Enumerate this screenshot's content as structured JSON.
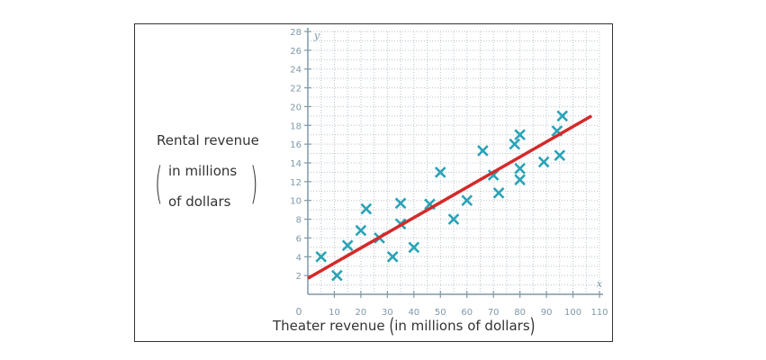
{
  "chart_data": {
    "type": "scatter",
    "title": "",
    "xlabel": {
      "main": "Theater revenue",
      "paren": "in millions of dollars"
    },
    "ylabel": {
      "main": "Rental revenue",
      "paren_line1": "in millions",
      "paren_line2": "of dollars"
    },
    "x_axis_letter": "x",
    "y_axis_letter": "y",
    "origin_label": "0",
    "xlim": [
      0,
      110
    ],
    "ylim": [
      0,
      28
    ],
    "x_ticks": [
      10,
      20,
      30,
      40,
      50,
      60,
      70,
      80,
      90,
      100,
      110
    ],
    "y_ticks": [
      2,
      4,
      6,
      8,
      10,
      12,
      14,
      16,
      18,
      20,
      22,
      24,
      26,
      28
    ],
    "grid": true,
    "marker": "x",
    "marker_color": "#2aa3b7",
    "line_color": "#d42a2a",
    "axis_color": "#7f99a8",
    "grid_color": "#b7c4cc",
    "points": [
      {
        "x": 5,
        "y": 4
      },
      {
        "x": 11,
        "y": 2
      },
      {
        "x": 15,
        "y": 5.2
      },
      {
        "x": 20,
        "y": 6.8
      },
      {
        "x": 22,
        "y": 9.1
      },
      {
        "x": 27,
        "y": 6
      },
      {
        "x": 32,
        "y": 4
      },
      {
        "x": 35,
        "y": 7.5
      },
      {
        "x": 35,
        "y": 9.7
      },
      {
        "x": 40,
        "y": 5
      },
      {
        "x": 46,
        "y": 9.6
      },
      {
        "x": 50,
        "y": 13
      },
      {
        "x": 55,
        "y": 8
      },
      {
        "x": 60,
        "y": 10
      },
      {
        "x": 66,
        "y": 15.3
      },
      {
        "x": 70,
        "y": 12.7
      },
      {
        "x": 72,
        "y": 10.8
      },
      {
        "x": 78,
        "y": 16
      },
      {
        "x": 80,
        "y": 17
      },
      {
        "x": 80,
        "y": 13.4
      },
      {
        "x": 80,
        "y": 12.2
      },
      {
        "x": 89,
        "y": 14.1
      },
      {
        "x": 94,
        "y": 17.4
      },
      {
        "x": 95,
        "y": 14.8
      },
      {
        "x": 96,
        "y": 19
      }
    ],
    "trend_line": {
      "x1": 0,
      "y1": 1.7,
      "x2": 107,
      "y2": 19
    }
  }
}
